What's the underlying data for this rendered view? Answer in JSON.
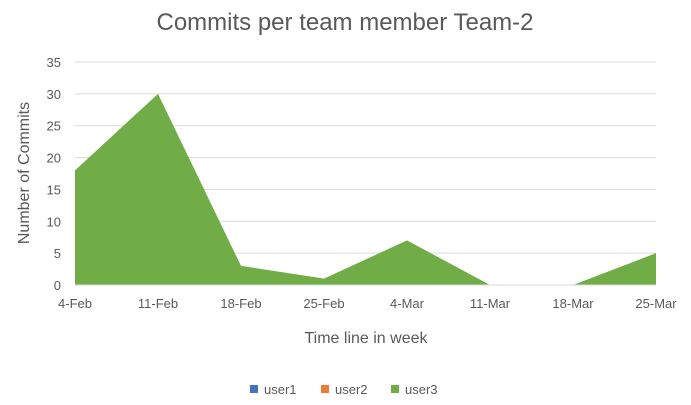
{
  "chart_data": {
    "type": "area",
    "title": "Commits per team member Team-2",
    "xlabel": "Time line in week",
    "ylabel": "Number of Commits",
    "categories": [
      "4-Feb",
      "11-Feb",
      "18-Feb",
      "25-Feb",
      "4-Mar",
      "11-Mar",
      "18-Mar",
      "25-Mar"
    ],
    "ylim": [
      0,
      35
    ],
    "yticks": [
      0,
      5,
      10,
      15,
      20,
      25,
      30,
      35
    ],
    "grid": true,
    "legend_position": "bottom",
    "series": [
      {
        "name": "user1",
        "color": "#4472C4",
        "values": [
          0,
          0,
          0,
          1,
          0,
          0,
          0,
          0
        ]
      },
      {
        "name": "user2",
        "color": "#ED7D31",
        "values": [
          1,
          0,
          0,
          0,
          0,
          0,
          0,
          0
        ]
      },
      {
        "name": "user3",
        "color": "#70AD47",
        "values": [
          18,
          30,
          3,
          1,
          7,
          0,
          0,
          5
        ]
      }
    ]
  }
}
